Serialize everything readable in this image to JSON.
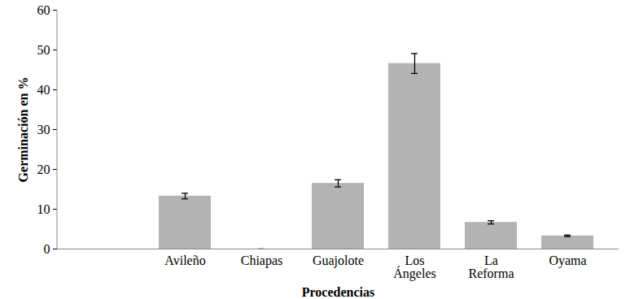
{
  "chart_data": {
    "type": "bar",
    "x_label": "Procedencias",
    "y_label": "Germinación en %",
    "categories": [
      null,
      "Avileño",
      "Chiapas",
      "Guajolote",
      "Los Ángeles",
      "La Reforma",
      "Oyama"
    ],
    "values": [
      null,
      13.3,
      0,
      16.5,
      46.6,
      6.7,
      3.3
    ],
    "errors": [
      null,
      0.7,
      0,
      0.9,
      2.5,
      0.4,
      0.2
    ],
    "color": "#b3b3b3",
    "ylim": [
      0,
      60
    ],
    "yticks": [
      0,
      10,
      20,
      30,
      40,
      50,
      60
    ],
    "grid": false
  }
}
